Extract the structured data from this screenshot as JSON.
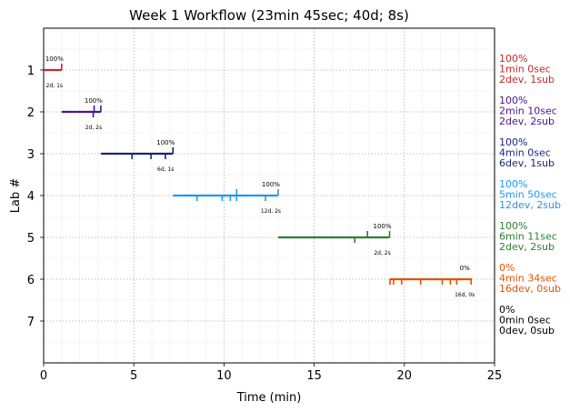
{
  "chart_data": {
    "type": "timeline",
    "title": "Week 1 Workflow (23min 45sec; 40d; 8s)",
    "xlabel": "Time (min)",
    "ylabel": "Lab #",
    "xlim": [
      0,
      25
    ],
    "ylim": [
      0,
      8
    ],
    "x_ticks": [
      0,
      5,
      10,
      15,
      20,
      25
    ],
    "y_ticks": [
      1,
      2,
      3,
      4,
      5,
      6,
      7
    ],
    "grid": true,
    "labs": [
      {
        "lab": 1,
        "color": "#c62828",
        "start": 0.0,
        "end": 1.0,
        "dev_marks": [],
        "sub_marks": [
          1.0
        ],
        "pct": "100%",
        "counts": "2d, 1s",
        "side": [
          "100%",
          "1min 0sec",
          "2dev, 1sub"
        ]
      },
      {
        "lab": 2,
        "color": "#4a148c",
        "start": 1.0,
        "end": 3.17,
        "dev_marks": [
          2.75
        ],
        "sub_marks": [
          2.8,
          3.17
        ],
        "pct": "100%",
        "counts": "2d, 2s",
        "side": [
          "100%",
          "2min 10sec",
          "2dev, 2sub"
        ]
      },
      {
        "lab": 3,
        "color": "#1a237e",
        "start": 3.17,
        "end": 7.17,
        "dev_marks": [
          4.9,
          5.95,
          6.75
        ],
        "sub_marks": [
          7.17
        ],
        "pct": "100%",
        "counts": "6d, 1s",
        "side": [
          "100%",
          "4min 0sec",
          "6dev, 1sub"
        ]
      },
      {
        "lab": 4,
        "color": "#2196f3",
        "start": 7.17,
        "end": 13.0,
        "dev_marks": [
          8.5,
          9.9,
          10.35,
          10.7,
          12.3
        ],
        "sub_marks": [
          10.7,
          13.0
        ],
        "pct": "100%",
        "counts": "12d, 2s",
        "side": [
          "100%",
          "5min 50sec",
          "12dev, 2sub"
        ]
      },
      {
        "lab": 5,
        "color": "#2e7d32",
        "start": 13.0,
        "end": 19.18,
        "dev_marks": [
          17.25
        ],
        "sub_marks": [
          17.95,
          19.18
        ],
        "pct": "100%",
        "counts": "2d, 2s",
        "side": [
          "100%",
          "6min 11sec",
          "2dev, 2sub"
        ]
      },
      {
        "lab": 6,
        "color": "#e65100",
        "start": 19.18,
        "end": 23.75,
        "dev_marks": [
          19.2,
          19.4,
          19.85,
          20.9,
          22.1,
          22.55,
          22.9,
          23.7
        ],
        "sub_marks": [],
        "pct": "0%",
        "counts": "16d, 0s",
        "side": [
          "0%",
          "4min 34sec",
          "16dev, 0sub"
        ]
      },
      {
        "lab": 7,
        "color": "#000000",
        "start": null,
        "end": null,
        "dev_marks": [],
        "sub_marks": [],
        "pct": "",
        "counts": "",
        "side": [
          "0%",
          "0min 0sec",
          "0dev, 0sub"
        ]
      }
    ]
  }
}
